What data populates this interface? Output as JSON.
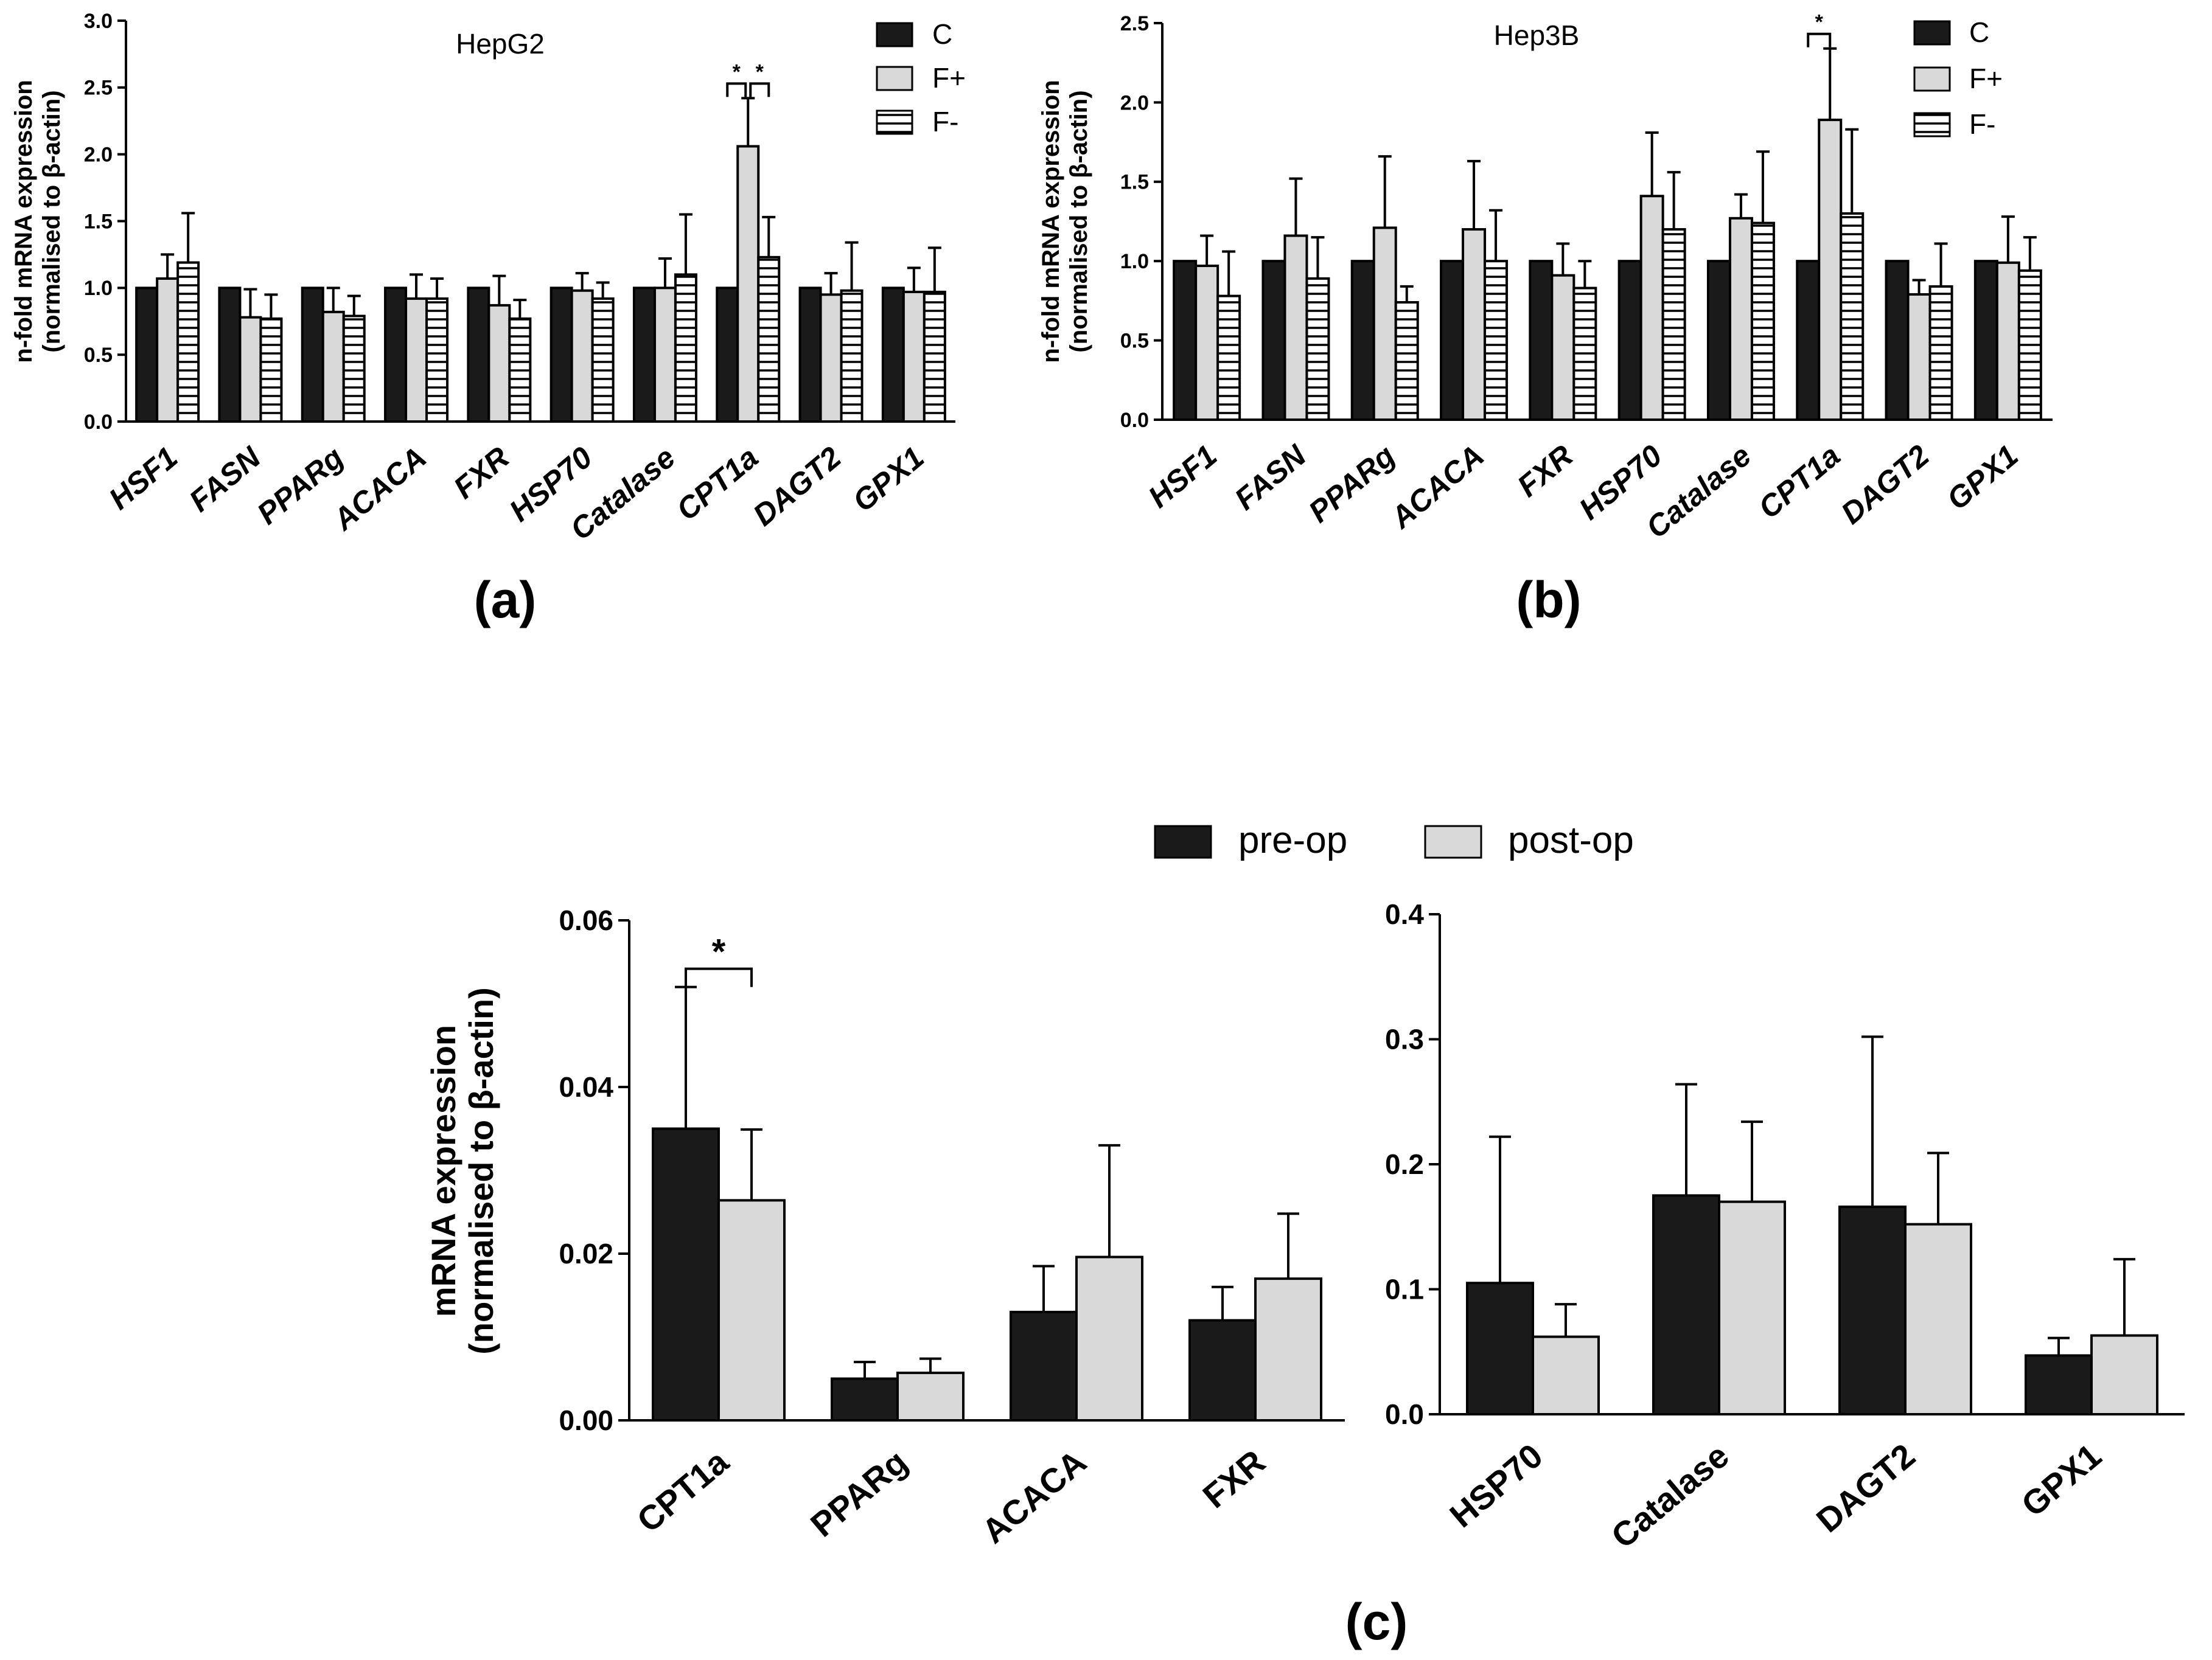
{
  "panels": {
    "a": {
      "label": "(a)"
    },
    "b": {
      "label": "(b)"
    },
    "c": {
      "label": "(c)"
    }
  },
  "legend_top": [
    "C",
    "F+",
    "F-"
  ],
  "legend_bottom": [
    "pre-op",
    "post-op"
  ],
  "colors": {
    "black": "#1a1a1a",
    "grey": "#d9d9d9",
    "white": "#ffffff",
    "stroke": "#000000"
  },
  "chart_data": [
    {
      "id": "a",
      "type": "bar",
      "title": "HepG2",
      "ylabel_line1": "n-fold mRNA expression",
      "ylabel_line2": "(normalised to β-actin)",
      "xlabel": "",
      "ylim": [
        0,
        3.0
      ],
      "yticks": [
        "0.0",
        "0.5",
        "1.0",
        "1.5",
        "2.0",
        "2.5",
        "3.0"
      ],
      "categories": [
        "HSF1",
        "FASN",
        "PPARg",
        "ACACA",
        "FXR",
        "HSP70",
        "Catalase",
        "CPT1a",
        "DAGT2",
        "GPX1"
      ],
      "series": [
        {
          "name": "C",
          "style": "black",
          "values": [
            1.0,
            1.0,
            1.0,
            1.0,
            1.0,
            1.0,
            1.0,
            1.0,
            1.0,
            1.0
          ],
          "err": [
            0,
            0,
            0,
            0,
            0,
            0,
            0,
            0,
            0,
            0
          ]
        },
        {
          "name": "F+",
          "style": "grey",
          "values": [
            1.07,
            0.78,
            0.82,
            0.92,
            0.87,
            0.98,
            1.0,
            2.06,
            0.95,
            0.97
          ],
          "err": [
            0.18,
            0.21,
            0.18,
            0.18,
            0.22,
            0.13,
            0.22,
            0.36,
            0.16,
            0.18
          ]
        },
        {
          "name": "F-",
          "style": "stripe",
          "values": [
            1.19,
            0.77,
            0.79,
            0.92,
            0.77,
            0.92,
            1.1,
            1.23,
            0.98,
            0.97
          ],
          "err": [
            0.37,
            0.18,
            0.15,
            0.15,
            0.14,
            0.12,
            0.45,
            0.3,
            0.36,
            0.33
          ]
        }
      ],
      "significance": [
        {
          "category": "CPT1a",
          "from": "C",
          "to": "F+",
          "label": "*"
        },
        {
          "category": "CPT1a",
          "from": "F+",
          "to": "F-",
          "label": "*"
        }
      ]
    },
    {
      "id": "b",
      "type": "bar",
      "title": "Hep3B",
      "ylabel_line1": "n-fold mRNA expression",
      "ylabel_line2": "(normalised to β-actin)",
      "xlabel": "",
      "ylim": [
        0,
        2.5
      ],
      "yticks": [
        "0.0",
        "0.5",
        "1.0",
        "1.5",
        "2.0",
        "2.5"
      ],
      "categories": [
        "HSF1",
        "FASN",
        "PPARg",
        "ACACA",
        "FXR",
        "HSP70",
        "Catalase",
        "CPT1a",
        "DAGT2",
        "GPX1"
      ],
      "series": [
        {
          "name": "C",
          "style": "black",
          "values": [
            1.0,
            1.0,
            1.0,
            1.0,
            1.0,
            1.0,
            1.0,
            1.0,
            1.0,
            1.0
          ],
          "err": [
            0,
            0,
            0,
            0,
            0,
            0,
            0,
            0,
            0,
            0
          ]
        },
        {
          "name": "F+",
          "style": "grey",
          "values": [
            0.97,
            1.16,
            1.21,
            1.2,
            0.91,
            1.41,
            1.27,
            1.89,
            0.79,
            0.99
          ],
          "err": [
            0.19,
            0.36,
            0.45,
            0.43,
            0.2,
            0.4,
            0.15,
            0.45,
            0.09,
            0.29
          ]
        },
        {
          "name": "F-",
          "style": "stripe",
          "values": [
            0.78,
            0.89,
            0.74,
            1.0,
            0.83,
            1.2,
            1.24,
            1.3,
            0.84,
            0.94
          ],
          "err": [
            0.28,
            0.26,
            0.1,
            0.32,
            0.17,
            0.36,
            0.45,
            0.53,
            0.27,
            0.21
          ]
        }
      ],
      "significance": [
        {
          "category": "CPT1a",
          "from": "C",
          "to": "F+",
          "label": "*"
        }
      ]
    },
    {
      "id": "c1",
      "type": "bar",
      "title": "",
      "ylabel_line1": "mRNA expression",
      "ylabel_line2": "(normalised to β-actin)",
      "xlabel": "",
      "ylim": [
        0,
        0.06
      ],
      "yticks": [
        "0.00",
        "0.02",
        "0.04",
        "0.06"
      ],
      "categories": [
        "CPT1a",
        "PPARg",
        "ACACA",
        "FXR"
      ],
      "series": [
        {
          "name": "pre-op",
          "style": "black",
          "values": [
            0.035,
            0.005,
            0.013,
            0.012
          ],
          "err": [
            0.017,
            0.002,
            0.0055,
            0.004
          ]
        },
        {
          "name": "post-op",
          "style": "grey",
          "values": [
            0.0264,
            0.0057,
            0.0196,
            0.017
          ],
          "err": [
            0.0085,
            0.0017,
            0.0134,
            0.0078
          ]
        }
      ],
      "significance": [
        {
          "category": "CPT1a",
          "from": "pre-op",
          "to": "post-op",
          "label": "*"
        }
      ]
    },
    {
      "id": "c2",
      "type": "bar",
      "title": "",
      "ylabel_line1": "",
      "ylabel_line2": "",
      "xlabel": "",
      "ylim": [
        0,
        0.4
      ],
      "yticks": [
        "0.0",
        "0.1",
        "0.2",
        "0.3",
        "0.4"
      ],
      "categories": [
        "HSP70",
        "Catalase",
        "DAGT2",
        "GPX1"
      ],
      "series": [
        {
          "name": "pre-op",
          "style": "black",
          "values": [
            0.105,
            0.175,
            0.166,
            0.047
          ],
          "err": [
            0.117,
            0.089,
            0.136,
            0.014
          ]
        },
        {
          "name": "post-op",
          "style": "grey",
          "values": [
            0.062,
            0.17,
            0.152,
            0.063
          ],
          "err": [
            0.026,
            0.064,
            0.057,
            0.061
          ]
        }
      ],
      "significance": []
    }
  ]
}
